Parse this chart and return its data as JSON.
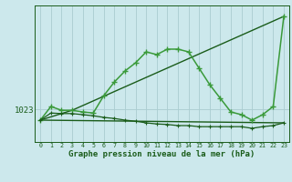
{
  "background_color": "#cce8ec",
  "line_color_light": "#3a9a3a",
  "line_color_dark": "#1a5c1a",
  "xlabel": "Graphe pression niveau de la mer (hPa)",
  "ylabel_tick": "1023",
  "ylabel_value": 1023,
  "xlim": [
    -0.5,
    23.5
  ],
  "ylim": [
    1017.0,
    1042.0
  ],
  "xticks": [
    0,
    1,
    2,
    3,
    4,
    5,
    6,
    7,
    8,
    9,
    10,
    11,
    12,
    13,
    14,
    15,
    16,
    17,
    18,
    19,
    20,
    21,
    22,
    23
  ],
  "yticks": [
    1023
  ],
  "grid_color": "#aaccd0",
  "series1": [
    [
      0,
      1021.0
    ],
    [
      1,
      1023.5
    ],
    [
      2,
      1022.8
    ],
    [
      3,
      1022.8
    ],
    [
      4,
      1022.5
    ],
    [
      5,
      1022.3
    ],
    [
      6,
      1025.5
    ],
    [
      7,
      1028.0
    ],
    [
      8,
      1030.0
    ],
    [
      9,
      1031.5
    ],
    [
      10,
      1033.5
    ],
    [
      11,
      1033.0
    ],
    [
      12,
      1034.0
    ],
    [
      13,
      1034.0
    ],
    [
      14,
      1033.5
    ],
    [
      15,
      1030.5
    ],
    [
      16,
      1027.5
    ],
    [
      17,
      1025.0
    ],
    [
      18,
      1022.5
    ],
    [
      19,
      1022.0
    ],
    [
      20,
      1021.0
    ],
    [
      21,
      1022.0
    ],
    [
      22,
      1023.5
    ],
    [
      23,
      1040.0
    ]
  ],
  "series2_triangle": [
    [
      0,
      1021.0
    ],
    [
      3,
      1022.8
    ],
    [
      23,
      1040.0
    ]
  ],
  "series3": [
    [
      0,
      1021.0
    ],
    [
      1,
      1022.3
    ],
    [
      2,
      1022.2
    ],
    [
      3,
      1022.2
    ],
    [
      4,
      1022.0
    ],
    [
      5,
      1021.8
    ],
    [
      6,
      1021.5
    ],
    [
      7,
      1021.3
    ],
    [
      8,
      1021.0
    ],
    [
      9,
      1020.8
    ],
    [
      10,
      1020.5
    ],
    [
      11,
      1020.3
    ],
    [
      12,
      1020.2
    ],
    [
      13,
      1020.0
    ],
    [
      14,
      1020.0
    ],
    [
      15,
      1019.8
    ],
    [
      16,
      1019.8
    ],
    [
      17,
      1019.8
    ],
    [
      18,
      1019.8
    ],
    [
      19,
      1019.8
    ],
    [
      20,
      1019.5
    ],
    [
      21,
      1019.8
    ],
    [
      22,
      1020.0
    ],
    [
      23,
      1020.5
    ]
  ],
  "series4_line": [
    [
      0,
      1021.0
    ],
    [
      23,
      1020.5
    ]
  ]
}
